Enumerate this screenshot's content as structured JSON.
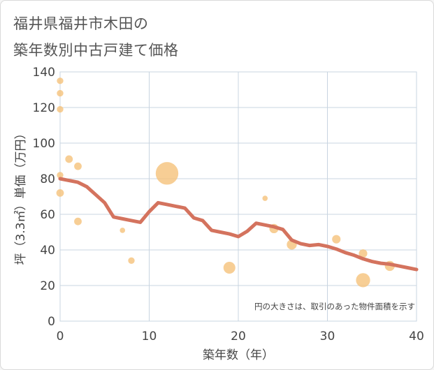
{
  "title_lines": [
    "福井県福井市木田の",
    "築年数別中古戸建て価格"
  ],
  "chart_data": {
    "type": "scatter",
    "title": "福井県福井市木田の築年数別中古戸建て価格",
    "xlabel": "築年数（年）",
    "ylabel": "坪（3.3㎡）単価（万円）",
    "xlim": [
      0,
      40
    ],
    "ylim": [
      0,
      140
    ],
    "xticks": [
      0,
      10,
      20,
      30,
      40
    ],
    "yticks": [
      0,
      20,
      40,
      60,
      80,
      100,
      120,
      140
    ],
    "grid": true,
    "note": "円の大きさは、取引のあった物件面積を示す",
    "colors": {
      "bubble": "#f5c27a",
      "trend": "#d4735e",
      "grid": "#c8d4e0"
    },
    "points": [
      {
        "x": 0,
        "y": 135,
        "size": 3
      },
      {
        "x": 0,
        "y": 128,
        "size": 3
      },
      {
        "x": 0,
        "y": 119,
        "size": 3
      },
      {
        "x": 0,
        "y": 82,
        "size": 3
      },
      {
        "x": 0,
        "y": 72,
        "size": 4
      },
      {
        "x": 1,
        "y": 91,
        "size": 4
      },
      {
        "x": 2,
        "y": 87,
        "size": 4
      },
      {
        "x": 2,
        "y": 56,
        "size": 4
      },
      {
        "x": 7,
        "y": 51,
        "size": 2
      },
      {
        "x": 8,
        "y": 34,
        "size": 3
      },
      {
        "x": 12,
        "y": 83,
        "size": 36
      },
      {
        "x": 19,
        "y": 30,
        "size": 10
      },
      {
        "x": 23,
        "y": 69,
        "size": 2
      },
      {
        "x": 24,
        "y": 52,
        "size": 6
      },
      {
        "x": 26,
        "y": 43,
        "size": 7
      },
      {
        "x": 31,
        "y": 46,
        "size": 5
      },
      {
        "x": 34,
        "y": 38,
        "size": 5
      },
      {
        "x": 34,
        "y": 23,
        "size": 14
      },
      {
        "x": 37,
        "y": 31,
        "size": 7
      }
    ],
    "trend": {
      "x": [
        0,
        1,
        2,
        3,
        4,
        5,
        6,
        7,
        8,
        9,
        10,
        11,
        12,
        13,
        14,
        15,
        16,
        17,
        18,
        19,
        20,
        21,
        22,
        23,
        24,
        25,
        26,
        27,
        28,
        29,
        30,
        31,
        32,
        33,
        34,
        35,
        36,
        37,
        38,
        39,
        40
      ],
      "y": [
        80,
        79,
        78,
        75.5,
        71,
        66.5,
        58.5,
        57.5,
        56.5,
        55.5,
        61.5,
        66.5,
        65.5,
        64.5,
        63.5,
        58,
        56.5,
        51,
        50,
        49,
        47.5,
        50.5,
        55,
        54,
        53,
        51.5,
        45.5,
        43.5,
        42.5,
        43,
        42,
        40.5,
        38.5,
        37,
        35,
        33.5,
        32.5,
        32,
        31,
        30,
        29
      ]
    }
  }
}
